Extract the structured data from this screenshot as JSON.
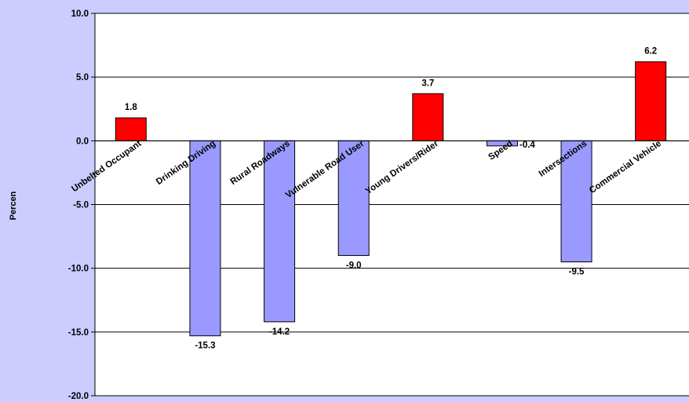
{
  "chart_data": {
    "type": "bar",
    "ylabel": "Percen",
    "ylim": [
      -20,
      10
    ],
    "yticks": [
      10,
      5,
      0,
      -5,
      -10,
      -15,
      -20
    ],
    "ytick_labels": [
      "10.0",
      "5.0",
      "0.0",
      "-5.0",
      "-10.0",
      "-15.0",
      "-20.0"
    ],
    "grid": true,
    "categories": [
      "Unbelted Occupant",
      "Drinking Driving",
      "Rural Roadways",
      "Vulnerable Road User",
      "Young Drivers/Rider",
      "Speed",
      "Intersections",
      "Commercial Vehicle"
    ],
    "values": [
      1.8,
      -15.3,
      -14.2,
      -9.0,
      3.7,
      -0.4,
      -9.5,
      6.2
    ],
    "value_labels": [
      "1.8",
      "-15.3",
      "-14.2",
      "-9.0",
      "3.7",
      "-0.4",
      "-9.5",
      "6.2"
    ],
    "colors": {
      "positive": "#ff0000",
      "negative": "#9999ff",
      "plot_background": "#ffffff",
      "page_background": "#ccccff"
    }
  }
}
